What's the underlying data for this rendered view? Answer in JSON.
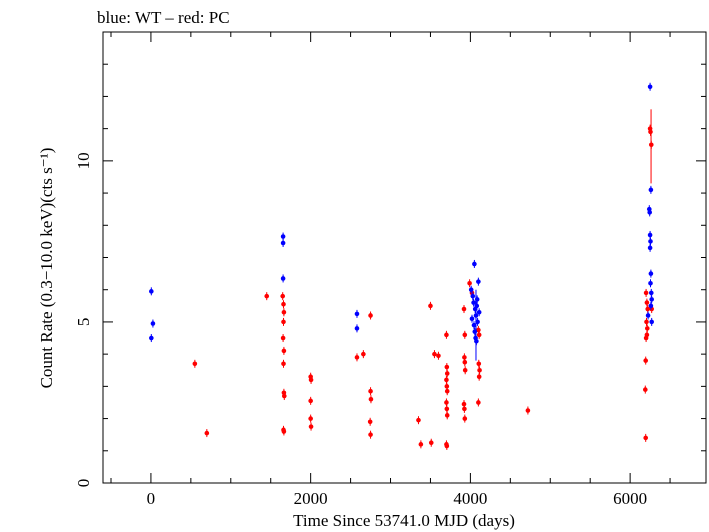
{
  "chart_data": {
    "type": "scatter",
    "title": "blue: WT – red: PC",
    "xlabel": "Time Since 53741.0 MJD (days)",
    "ylabel": "Count Rate (0.3−10.0 keV)(cts s⁻¹)",
    "xlim": [
      -600,
      6950
    ],
    "ylim": [
      0,
      14
    ],
    "x_ticks": [
      0,
      2000,
      4000,
      6000
    ],
    "y_ticks": [
      0,
      5,
      10
    ],
    "grid": false,
    "colors": {
      "WT": "#0000ff",
      "PC": "#ff0000"
    },
    "series": [
      {
        "name": "WT",
        "points": [
          {
            "x": 5,
            "y": 5.95
          },
          {
            "x": 25,
            "y": 4.95
          },
          {
            "x": 5,
            "y": 4.5
          },
          {
            "x": 1655,
            "y": 7.65
          },
          {
            "x": 1655,
            "y": 7.45
          },
          {
            "x": 1655,
            "y": 6.35
          },
          {
            "x": 2580,
            "y": 5.25
          },
          {
            "x": 2580,
            "y": 4.8
          },
          {
            "x": 4050,
            "y": 6.8
          },
          {
            "x": 4010,
            "y": 6.0
          },
          {
            "x": 4030,
            "y": 5.8
          },
          {
            "x": 4040,
            "y": 5.6
          },
          {
            "x": 4060,
            "y": 5.4
          },
          {
            "x": 4070,
            "y": 5.2
          },
          {
            "x": 4080,
            "y": 5.5
          },
          {
            "x": 4090,
            "y": 5.0
          },
          {
            "x": 4045,
            "y": 4.9
          },
          {
            "x": 4055,
            "y": 4.7
          },
          {
            "x": 4065,
            "y": 4.5
          },
          {
            "x": 4075,
            "y": 4.4
          },
          {
            "x": 4100,
            "y": 6.25
          },
          {
            "x": 4110,
            "y": 5.3
          },
          {
            "x": 4020,
            "y": 5.1
          },
          {
            "x": 4085,
            "y": 5.7
          },
          {
            "x": 6250,
            "y": 12.3
          },
          {
            "x": 6260,
            "y": 9.1
          },
          {
            "x": 6240,
            "y": 8.5
          },
          {
            "x": 6245,
            "y": 8.4
          },
          {
            "x": 6250,
            "y": 7.7
          },
          {
            "x": 6255,
            "y": 7.5
          },
          {
            "x": 6250,
            "y": 7.3
          },
          {
            "x": 6260,
            "y": 6.5
          },
          {
            "x": 6255,
            "y": 6.2
          },
          {
            "x": 6265,
            "y": 5.9
          },
          {
            "x": 6270,
            "y": 5.7
          },
          {
            "x": 6260,
            "y": 5.5
          },
          {
            "x": 6270,
            "y": 5.0
          },
          {
            "x": 6225,
            "y": 5.2
          }
        ]
      },
      {
        "name": "PC",
        "points": [
          {
            "x": 550,
            "y": 3.7
          },
          {
            "x": 700,
            "y": 1.55
          },
          {
            "x": 1450,
            "y": 5.8
          },
          {
            "x": 1650,
            "y": 5.8
          },
          {
            "x": 1660,
            "y": 5.55
          },
          {
            "x": 1665,
            "y": 5.3
          },
          {
            "x": 1660,
            "y": 5.0
          },
          {
            "x": 1655,
            "y": 4.5
          },
          {
            "x": 1665,
            "y": 4.1
          },
          {
            "x": 1660,
            "y": 3.7
          },
          {
            "x": 1665,
            "y": 2.8
          },
          {
            "x": 1670,
            "y": 2.7
          },
          {
            "x": 1660,
            "y": 1.65
          },
          {
            "x": 1665,
            "y": 1.6
          },
          {
            "x": 2000,
            "y": 3.3
          },
          {
            "x": 2005,
            "y": 3.2
          },
          {
            "x": 2000,
            "y": 2.55
          },
          {
            "x": 2000,
            "y": 2.0
          },
          {
            "x": 2005,
            "y": 1.75
          },
          {
            "x": 2580,
            "y": 3.9
          },
          {
            "x": 2660,
            "y": 4.0
          },
          {
            "x": 2750,
            "y": 5.2
          },
          {
            "x": 2750,
            "y": 2.85
          },
          {
            "x": 2755,
            "y": 2.6
          },
          {
            "x": 2745,
            "y": 1.9
          },
          {
            "x": 2750,
            "y": 1.5
          },
          {
            "x": 3350,
            "y": 1.95
          },
          {
            "x": 3380,
            "y": 1.2
          },
          {
            "x": 3500,
            "y": 5.5
          },
          {
            "x": 3510,
            "y": 1.25
          },
          {
            "x": 3550,
            "y": 4.0
          },
          {
            "x": 3600,
            "y": 3.95
          },
          {
            "x": 3700,
            "y": 4.6
          },
          {
            "x": 3705,
            "y": 3.6
          },
          {
            "x": 3710,
            "y": 3.4
          },
          {
            "x": 3700,
            "y": 3.2
          },
          {
            "x": 3705,
            "y": 3.0
          },
          {
            "x": 3710,
            "y": 2.85
          },
          {
            "x": 3700,
            "y": 2.5
          },
          {
            "x": 3705,
            "y": 2.3
          },
          {
            "x": 3710,
            "y": 2.1
          },
          {
            "x": 3700,
            "y": 1.2
          },
          {
            "x": 3705,
            "y": 1.15
          },
          {
            "x": 3920,
            "y": 5.4
          },
          {
            "x": 3930,
            "y": 4.6
          },
          {
            "x": 3925,
            "y": 3.9
          },
          {
            "x": 3930,
            "y": 3.75
          },
          {
            "x": 3935,
            "y": 3.5
          },
          {
            "x": 3920,
            "y": 2.45
          },
          {
            "x": 3925,
            "y": 2.3
          },
          {
            "x": 3930,
            "y": 2.0
          },
          {
            "x": 3990,
            "y": 6.2
          },
          {
            "x": 4020,
            "y": 5.9
          },
          {
            "x": 4100,
            "y": 4.75
          },
          {
            "x": 4110,
            "y": 4.6
          },
          {
            "x": 4105,
            "y": 3.7
          },
          {
            "x": 4115,
            "y": 3.5
          },
          {
            "x": 4110,
            "y": 3.3
          },
          {
            "x": 4100,
            "y": 2.5
          },
          {
            "x": 4720,
            "y": 2.25
          },
          {
            "x": 6200,
            "y": 5.9
          },
          {
            "x": 6210,
            "y": 5.6
          },
          {
            "x": 6220,
            "y": 5.4
          },
          {
            "x": 6205,
            "y": 5.0
          },
          {
            "x": 6215,
            "y": 4.8
          },
          {
            "x": 6210,
            "y": 4.6
          },
          {
            "x": 6200,
            "y": 4.5
          },
          {
            "x": 6195,
            "y": 3.8
          },
          {
            "x": 6190,
            "y": 2.9
          },
          {
            "x": 6195,
            "y": 1.4
          },
          {
            "x": 6250,
            "y": 11.0
          },
          {
            "x": 6255,
            "y": 10.9
          },
          {
            "x": 6265,
            "y": 10.5
          },
          {
            "x": 6270,
            "y": 5.4
          }
        ]
      }
    ]
  }
}
